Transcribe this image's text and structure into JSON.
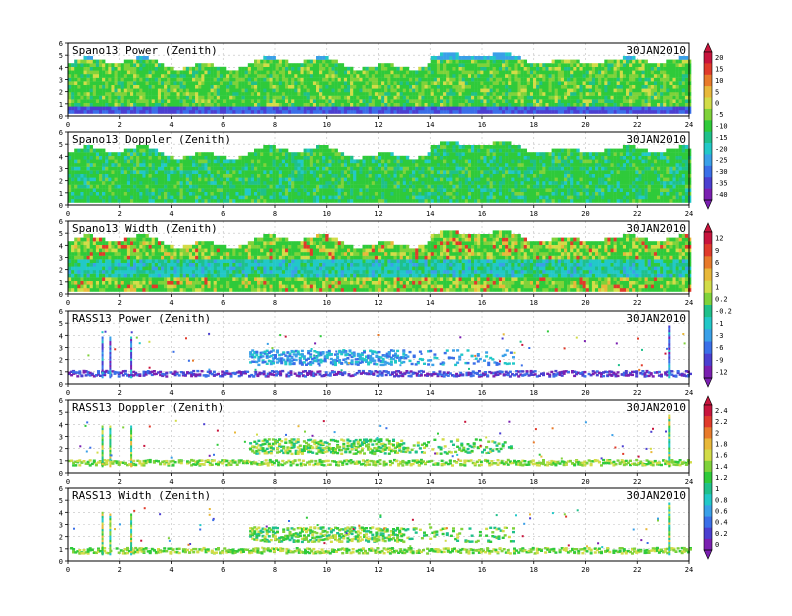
{
  "date_label": "30JAN2010",
  "x_axis": {
    "min": 0,
    "max": 24,
    "ticks": [
      "0",
      "2",
      "4",
      "6",
      "8",
      "10",
      "12",
      "14",
      "16",
      "18",
      "20",
      "22",
      "24"
    ]
  },
  "y_axis": {
    "min": 0,
    "max": 6,
    "ticks": [
      "0",
      "1",
      "2",
      "3",
      "4",
      "5",
      "6"
    ]
  },
  "panels": [
    {
      "title": "Spano13 Power (Zenith)",
      "kind": "spano",
      "variable": "power"
    },
    {
      "title": "Spano13 Doppler (Zenith)",
      "kind": "spano",
      "variable": "doppler"
    },
    {
      "title": "Spano13 Width (Zenith)",
      "kind": "spano",
      "variable": "width"
    },
    {
      "title": "RASS13 Power (Zenith)",
      "kind": "rass",
      "variable": "power"
    },
    {
      "title": "RASS13 Doppler (Zenith)",
      "kind": "rass",
      "variable": "doppler"
    },
    {
      "title": "RASS13 Width (Zenith)",
      "kind": "rass",
      "variable": "width"
    }
  ],
  "colorbars": [
    {
      "labels": [
        "20",
        "15",
        "10",
        "5",
        "0",
        "-5",
        "-10",
        "-15",
        "-20",
        "-25",
        "-30",
        "-35",
        "-40"
      ]
    },
    {
      "labels": [
        "12",
        "9",
        "6",
        "3",
        "1",
        "0.2",
        "-0.2",
        "-1",
        "-3",
        "-6",
        "-9",
        "-12"
      ]
    },
    {
      "labels": [
        "2.4",
        "2.2",
        "2",
        "1.8",
        "1.6",
        "1.4",
        "1.2",
        "1",
        "0.8",
        "0.6",
        "0.4",
        "0.2",
        "0"
      ]
    }
  ],
  "colors": {
    "scale": [
      "#7a1fb0",
      "#4b3fd0",
      "#3a6fe8",
      "#3aa0e8",
      "#22c8c8",
      "#1fc08a",
      "#2fca3a",
      "#7fd23a",
      "#d2dc48",
      "#e8b83a",
      "#e87a2a",
      "#e03a2a",
      "#c8143c"
    ],
    "spano_background": "#2fca3a",
    "grid": "#bfbfbf"
  },
  "chart_data": [
    {
      "type": "heatmap",
      "title": "Spano13 Power (Zenith)",
      "xlim": [
        0,
        24
      ],
      "ylim": [
        0,
        6
      ],
      "grid": true
    },
    {
      "type": "heatmap",
      "title": "Spano13 Doppler (Zenith)",
      "xlim": [
        0,
        24
      ],
      "ylim": [
        0,
        6
      ],
      "grid": true
    },
    {
      "type": "heatmap",
      "title": "Spano13 Width (Zenith)",
      "xlim": [
        0,
        24
      ],
      "ylim": [
        0,
        6
      ],
      "grid": true
    },
    {
      "type": "heatmap",
      "title": "RASS13 Power (Zenith)",
      "xlim": [
        0,
        24
      ],
      "ylim": [
        0,
        6
      ],
      "grid": true
    },
    {
      "type": "heatmap",
      "title": "RASS13 Doppler (Zenith)",
      "xlim": [
        0,
        24
      ],
      "ylim": [
        0,
        6
      ],
      "grid": true
    },
    {
      "type": "heatmap",
      "title": "RASS13 Width (Zenith)",
      "xlim": [
        0,
        24
      ],
      "ylim": [
        0,
        6
      ],
      "grid": true
    }
  ]
}
